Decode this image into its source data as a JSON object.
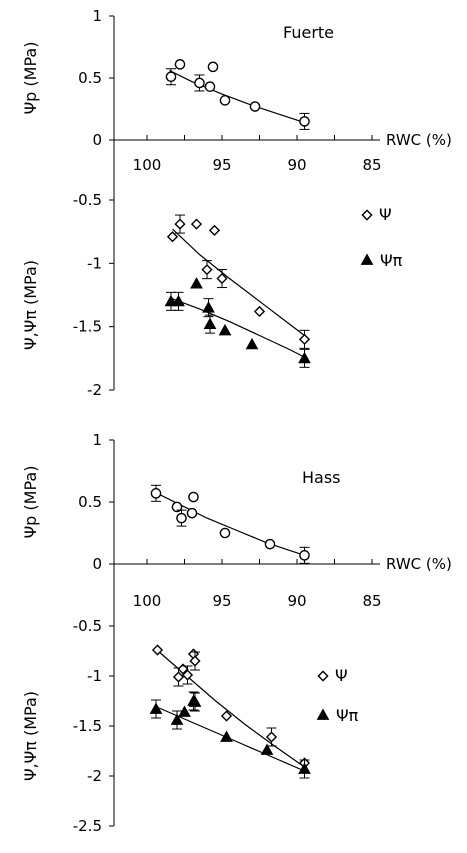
{
  "chart_data": [
    {
      "type": "scatter",
      "panel": "Fuerte",
      "title": "Fuerte",
      "x_axis": {
        "label": "RWC (%)",
        "ticks": [
          100,
          95,
          90,
          85
        ],
        "range": [
          102,
          85
        ],
        "reversed": true
      },
      "top": {
        "ylabel": "Ψp (MPa)",
        "ylim": [
          0,
          1
        ],
        "yticks": [
          "0",
          "0.5",
          "1"
        ],
        "series": [
          {
            "marker": "circle",
            "points": [
              [
                98.4,
                0.51
              ],
              [
                97.8,
                0.61
              ],
              [
                96.5,
                0.46
              ],
              [
                95.8,
                0.43
              ],
              [
                95.6,
                0.59
              ],
              [
                94.8,
                0.32
              ],
              [
                92.8,
                0.27
              ],
              [
                89.5,
                0.15
              ]
            ]
          }
        ],
        "fit": [
          [
            98.5,
            0.56
          ],
          [
            97,
            0.47
          ],
          [
            95,
            0.37
          ],
          [
            93,
            0.28
          ],
          [
            91,
            0.2
          ],
          [
            89.5,
            0.14
          ]
        ]
      },
      "bottom": {
        "ylabel": "Ψ,Ψπ  (MPa)",
        "ylim": [
          -2,
          -0.5
        ],
        "yticks": [
          "-0.5",
          "-1",
          "-1.5",
          "-2"
        ],
        "legend": [
          {
            "marker": "diamond",
            "label": "Ψ"
          },
          {
            "marker": "triangle",
            "label": "Ψπ"
          }
        ],
        "series": [
          {
            "name": "Ψ",
            "marker": "diamond",
            "points": [
              [
                98.3,
                -0.79
              ],
              [
                97.8,
                -0.69
              ],
              [
                96.7,
                -0.69
              ],
              [
                95.5,
                -0.74
              ],
              [
                96,
                -1.05
              ],
              [
                95,
                -1.12
              ],
              [
                92.5,
                -1.38
              ],
              [
                89.5,
                -1.6
              ]
            ]
          },
          {
            "name": "Ψπ",
            "marker": "triangle",
            "points": [
              [
                98.4,
                -1.3
              ],
              [
                97.9,
                -1.3
              ],
              [
                96.7,
                -1.16
              ],
              [
                95.8,
                -1.48
              ],
              [
                95.9,
                -1.35
              ],
              [
                94.8,
                -1.53
              ],
              [
                93,
                -1.64
              ],
              [
                89.5,
                -1.75
              ]
            ]
          }
        ],
        "fits": [
          {
            "series": "Ψ",
            "points": [
              [
                98.3,
                -0.73
              ],
              [
                96.5,
                -0.93
              ],
              [
                94.5,
                -1.12
              ],
              [
                92.5,
                -1.3
              ],
              [
                90.5,
                -1.48
              ],
              [
                89.5,
                -1.57
              ]
            ]
          },
          {
            "series": "Ψπ",
            "points": [
              [
                98.3,
                -1.28
              ],
              [
                96.5,
                -1.36
              ],
              [
                94.5,
                -1.46
              ],
              [
                92.5,
                -1.57
              ],
              [
                90.5,
                -1.68
              ],
              [
                89.5,
                -1.74
              ]
            ]
          }
        ]
      }
    },
    {
      "type": "scatter",
      "panel": "Hass",
      "title": "Hass",
      "x_axis": {
        "label": "RWC (%)",
        "ticks": [
          100,
          95,
          90,
          85
        ],
        "range": [
          102,
          85
        ],
        "reversed": true
      },
      "top": {
        "ylabel": "Ψp (MPa)",
        "ylim": [
          0,
          1
        ],
        "yticks": [
          "0",
          "0.5",
          "1"
        ],
        "series": [
          {
            "marker": "circle",
            "points": [
              [
                99.4,
                0.57
              ],
              [
                98,
                0.46
              ],
              [
                97.7,
                0.37
              ],
              [
                97,
                0.41
              ],
              [
                96.9,
                0.54
              ],
              [
                94.8,
                0.25
              ],
              [
                91.8,
                0.16
              ],
              [
                89.5,
                0.07
              ]
            ]
          }
        ],
        "fit": [
          [
            99.5,
            0.58
          ],
          [
            98,
            0.49
          ],
          [
            96,
            0.37
          ],
          [
            94,
            0.27
          ],
          [
            92,
            0.17
          ],
          [
            89.5,
            0.07
          ]
        ]
      },
      "bottom": {
        "ylabel": "Ψ,Ψπ  (MPa)",
        "ylim": [
          -2.5,
          -0.5
        ],
        "yticks": [
          "-0.5",
          "-1",
          "-1.5",
          "-2",
          "-2.5"
        ],
        "legend": [
          {
            "marker": "diamond",
            "label": "Ψ"
          },
          {
            "marker": "triangle",
            "label": "Ψπ"
          }
        ],
        "series": [
          {
            "name": "Ψ",
            "marker": "diamond",
            "points": [
              [
                99.3,
                -0.74
              ],
              [
                97.9,
                -1.01
              ],
              [
                97.6,
                -0.93
              ],
              [
                96.9,
                -0.78
              ],
              [
                96.8,
                -0.85
              ],
              [
                97.3,
                -0.99
              ],
              [
                94.7,
                -1.4
              ],
              [
                91.7,
                -1.61
              ],
              [
                89.5,
                -1.87
              ]
            ]
          },
          {
            "name": "Ψπ",
            "marker": "triangle",
            "points": [
              [
                99.4,
                -1.33
              ],
              [
                98,
                -1.44
              ],
              [
                97.5,
                -1.36
              ],
              [
                96.8,
                -1.26
              ],
              [
                96.9,
                -1.25
              ],
              [
                94.7,
                -1.61
              ],
              [
                92,
                -1.74
              ],
              [
                89.5,
                -1.93
              ]
            ]
          }
        ],
        "fits": [
          {
            "series": "Ψ",
            "points": [
              [
                99.5,
                -0.72
              ],
              [
                97.5,
                -0.98
              ],
              [
                95.5,
                -1.24
              ],
              [
                93.5,
                -1.48
              ],
              [
                91.5,
                -1.7
              ],
              [
                89.5,
                -1.91
              ]
            ]
          },
          {
            "series": "Ψπ",
            "points": [
              [
                99.5,
                -1.3
              ],
              [
                97.5,
                -1.43
              ],
              [
                95.5,
                -1.56
              ],
              [
                93.5,
                -1.69
              ],
              [
                91.5,
                -1.82
              ],
              [
                89.5,
                -1.95
              ]
            ]
          }
        ]
      }
    }
  ]
}
